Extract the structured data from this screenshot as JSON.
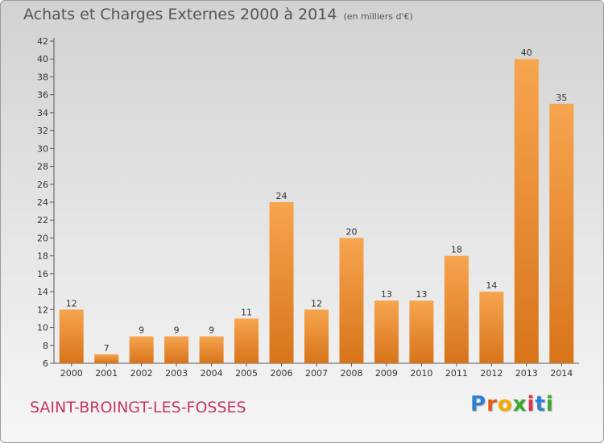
{
  "header": {
    "title": "Achats et Charges Externes 2000 à 2014",
    "subtitle": "(en milliers d'€)"
  },
  "footer": {
    "commune": "SAINT-BROINGT-LES-FOSSES",
    "brand": "Proxiti"
  },
  "colors": {
    "bar_light": "#f7a54f",
    "bar_dark": "#d8741a",
    "commune": "#c8346a",
    "brand_letters": [
      "#2f7fd4",
      "#e05a1e",
      "#f2a900",
      "#3aa830",
      "#e0304e",
      "#2f7fd4",
      "#3aa830"
    ]
  },
  "chart_data": {
    "type": "bar",
    "categories": [
      "2000",
      "2001",
      "2002",
      "2003",
      "2004",
      "2005",
      "2006",
      "2007",
      "2008",
      "2009",
      "2010",
      "2011",
      "2012",
      "2013",
      "2014"
    ],
    "values": [
      12,
      7,
      9,
      9,
      9,
      11,
      24,
      12,
      20,
      13,
      13,
      18,
      14,
      40,
      35
    ],
    "title": "Achats et Charges Externes 2000 à 2014",
    "subtitle": "(en milliers d'€)",
    "ylim": [
      6,
      42
    ],
    "yticks": [
      6,
      8,
      10,
      12,
      14,
      16,
      18,
      20,
      22,
      24,
      26,
      28,
      30,
      32,
      34,
      36,
      38,
      40,
      42
    ],
    "grid": false,
    "data_labels": true
  }
}
